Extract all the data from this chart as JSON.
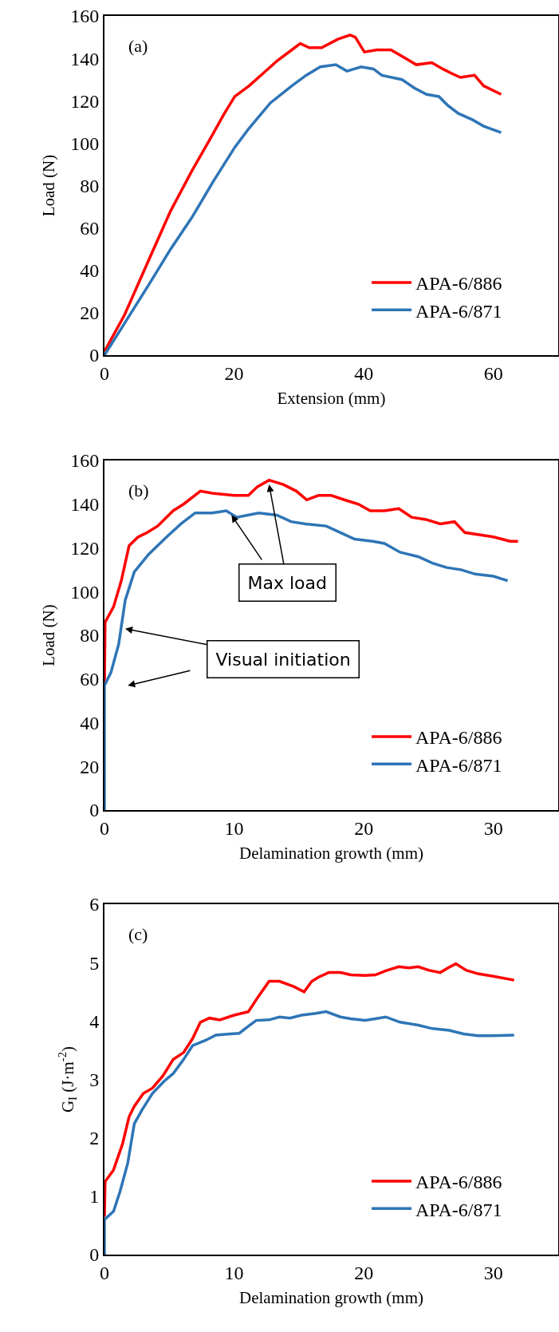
{
  "chart_data": [
    {
      "type": "line",
      "xlabel": "Extension (mm)",
      "ylabel": "Load (N)",
      "xlim": [
        0,
        70
      ],
      "xticks": [
        0,
        20,
        40,
        60
      ],
      "ylim": [
        0,
        160
      ],
      "yticks": [
        0,
        20,
        40,
        60,
        80,
        100,
        120,
        140,
        160
      ],
      "grid": false,
      "legend": "bottom right",
      "marker": "none",
      "line_style": "solid",
      "annotations": [
        "(a)"
      ],
      "series": [
        {
          "name": "APA-6/886",
          "color": "#ff0000",
          "x": [
            0,
            3.1,
            7,
            10.2,
            13.5,
            16.3,
            18.5,
            20.1,
            22.3,
            24.5,
            26.7,
            28.9,
            30.2,
            31.6,
            33.5,
            36,
            37.9,
            38.7,
            40.1,
            42,
            44.2,
            45.9,
            48.1,
            50.5,
            52.2,
            53.5,
            54.9,
            57.1,
            58.5,
            61.2
          ],
          "values": [
            1.7,
            19,
            46,
            68,
            87,
            102,
            114,
            122,
            127,
            133,
            139,
            144,
            147,
            145,
            145,
            149,
            151,
            150,
            143,
            144,
            144,
            141,
            137,
            138,
            135,
            133,
            131,
            132,
            127,
            123
          ]
        },
        {
          "name": "APA-6/871",
          "color": "#2e75b6",
          "x": [
            0,
            3.1,
            7,
            10.2,
            13.5,
            16.8,
            20.1,
            22.3,
            25.6,
            28.9,
            31.1,
            33.3,
            35.7,
            37.4,
            39.6,
            41.5,
            42.8,
            45.9,
            47.8,
            49.7,
            51.6,
            52.9,
            54.6,
            56.8,
            58.5,
            61.2
          ],
          "values": [
            0,
            15,
            34,
            50,
            65,
            82,
            98,
            107,
            119,
            127,
            132,
            136,
            137,
            134,
            136,
            135,
            132,
            130,
            126,
            123,
            122,
            118,
            114,
            111,
            108,
            105
          ]
        }
      ]
    },
    {
      "type": "line",
      "xlabel": "Delamination growth (mm)",
      "ylabel": "Load (N)",
      "xlim": [
        0,
        35
      ],
      "xticks": [
        0,
        10,
        20,
        30
      ],
      "ylim": [
        0,
        160
      ],
      "yticks": [
        0,
        20,
        40,
        60,
        80,
        100,
        120,
        140,
        160
      ],
      "grid": false,
      "legend": "bottom right",
      "marker": "none",
      "line_style": "solid",
      "annotations": [
        "(b)",
        {
          "text": "Max load",
          "x": 12.7,
          "y": 149
        },
        {
          "text": "Visual initiation",
          "x": 1.6,
          "y": 83
        }
      ],
      "series": [
        {
          "name": "APA-6/886",
          "color": "#ff0000",
          "x": [
            0,
            0.05,
            0.7,
            1.3,
            1.9,
            2.6,
            3.3,
            4.1,
            5.3,
            6.1,
            7.4,
            8.3,
            10,
            11.1,
            11.8,
            12.7,
            13.8,
            14.8,
            15.6,
            16.5,
            17.5,
            18.5,
            19.6,
            20.5,
            21.6,
            22.7,
            23.7,
            24.8,
            25.9,
            27,
            27.8,
            28.9,
            30,
            31.3,
            31.9
          ],
          "values": [
            58,
            86,
            93,
            105,
            121,
            125,
            127,
            130,
            137,
            140,
            146,
            145,
            144,
            144,
            148,
            151,
            149,
            146,
            142,
            144,
            144,
            142,
            140,
            137,
            137,
            138,
            134,
            133,
            131,
            132,
            127,
            126,
            125,
            123,
            123
          ]
        },
        {
          "name": "APA-6/871",
          "color": "#2e75b6",
          "x": [
            0,
            0,
            0.5,
            1.1,
            1.6,
            2.3,
            3.4,
            4.8,
            5.9,
            7,
            8.3,
            9.4,
            10.2,
            11.9,
            13.3,
            14.4,
            15.5,
            17.1,
            18.2,
            19.3,
            20.7,
            21.6,
            22.8,
            24.2,
            25.3,
            26.4,
            27.5,
            28.6,
            30,
            31.1
          ],
          "values": [
            0,
            57,
            63,
            76,
            96,
            109,
            117,
            125,
            131,
            136,
            136,
            137,
            134,
            136,
            135,
            132,
            131,
            130,
            127,
            124,
            123,
            122,
            118,
            116,
            113,
            111,
            110,
            108,
            107,
            105
          ]
        }
      ]
    },
    {
      "type": "line",
      "xlabel": "Delamination growth (mm)",
      "ylabel": "G$_{I}$ (J·m$^{-2}$)",
      "xlim": [
        0,
        35
      ],
      "xticks": [
        0,
        10,
        20,
        30
      ],
      "ylim": [
        0,
        6
      ],
      "yticks": [
        0,
        1,
        2,
        3,
        4,
        5,
        6
      ],
      "grid": false,
      "legend": "bottom right",
      "marker": "none",
      "line_style": "solid",
      "annotations": [
        "(c)"
      ],
      "series": [
        {
          "name": "APA-6/886",
          "color": "#ff0000",
          "x": [
            0,
            0.05,
            0.7,
            1.4,
            1.9,
            2.3,
            3,
            3.7,
            4.5,
            5.3,
            6.1,
            6.8,
            7.4,
            8.1,
            8.9,
            10,
            11.1,
            11.9,
            12.7,
            13.5,
            14.6,
            15.4,
            16,
            16.5,
            17.3,
            18.2,
            19,
            20.1,
            20.9,
            21.7,
            22.7,
            23.5,
            24.2,
            25,
            25.9,
            26.5,
            27.1,
            27.9,
            28.8,
            29.9,
            31.6
          ],
          "values": [
            0.65,
            1.25,
            1.45,
            1.9,
            2.36,
            2.54,
            2.76,
            2.85,
            3.06,
            3.34,
            3.46,
            3.7,
            3.98,
            4.05,
            4.02,
            4.1,
            4.16,
            4.43,
            4.68,
            4.68,
            4.59,
            4.5,
            4.68,
            4.75,
            4.83,
            4.83,
            4.79,
            4.78,
            4.79,
            4.86,
            4.93,
            4.91,
            4.93,
            4.87,
            4.83,
            4.91,
            4.98,
            4.87,
            4.81,
            4.77,
            4.7
          ]
        },
        {
          "name": "APA-6/871",
          "color": "#2e75b6",
          "x": [
            0,
            0,
            0.7,
            1.2,
            1.8,
            2.3,
            2.9,
            3.7,
            4.6,
            5.3,
            6.1,
            6.8,
            7.8,
            8.6,
            9.7,
            10.4,
            11.1,
            11.7,
            12.7,
            13.5,
            14.3,
            15.2,
            16.3,
            17.1,
            18.2,
            19,
            20.1,
            20.9,
            21.7,
            22.8,
            24.2,
            25.3,
            26.6,
            27.7,
            28.8,
            29.9,
            31.6
          ],
          "values": [
            0,
            0.6,
            0.74,
            1.08,
            1.57,
            2.24,
            2.48,
            2.76,
            2.97,
            3.1,
            3.34,
            3.58,
            3.67,
            3.76,
            3.78,
            3.79,
            3.91,
            4.01,
            4.02,
            4.07,
            4.05,
            4.1,
            4.13,
            4.16,
            4.07,
            4.04,
            4.01,
            4.04,
            4.07,
            3.98,
            3.93,
            3.87,
            3.84,
            3.78,
            3.75,
            3.75,
            3.76
          ]
        }
      ]
    }
  ]
}
